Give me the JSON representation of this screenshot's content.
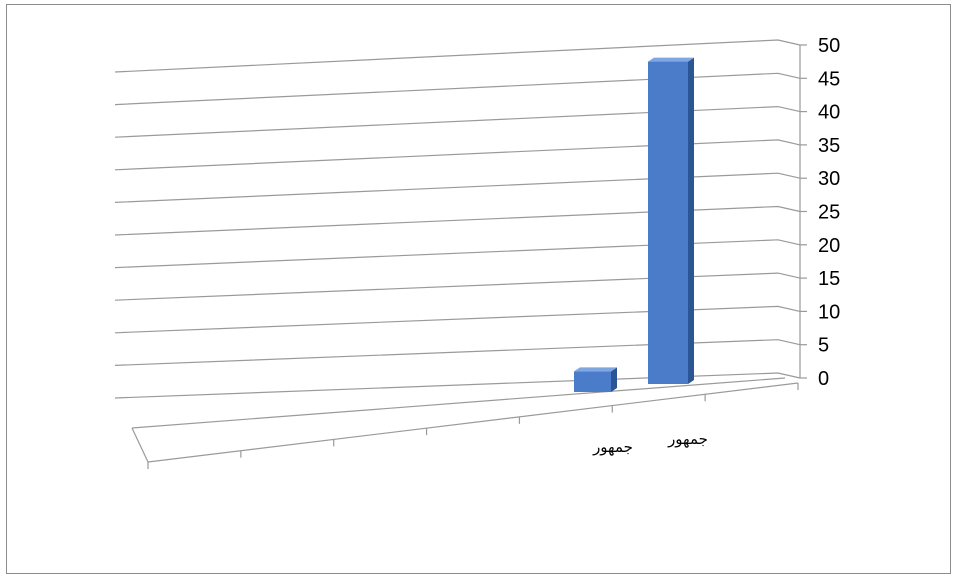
{
  "chart_data": {
    "type": "bar",
    "view": "3d",
    "categories": [
      "",
      "",
      "",
      "",
      "",
      "جمهور",
      "جمهور"
    ],
    "values": [
      null,
      null,
      null,
      null,
      null,
      3,
      47
    ],
    "ylim": [
      0,
      50
    ],
    "yticks": [
      0,
      5,
      10,
      15,
      20,
      25,
      30,
      35,
      40,
      45,
      50
    ],
    "yaxis_position": "right",
    "grid": true,
    "legend": "none",
    "colors": {
      "bar_front": "#4a7cc9",
      "bar_side": "#2c5596",
      "bar_top": "#7ea6e0",
      "grid": "#9a9a9a",
      "frame": "#8c8c8c"
    }
  }
}
